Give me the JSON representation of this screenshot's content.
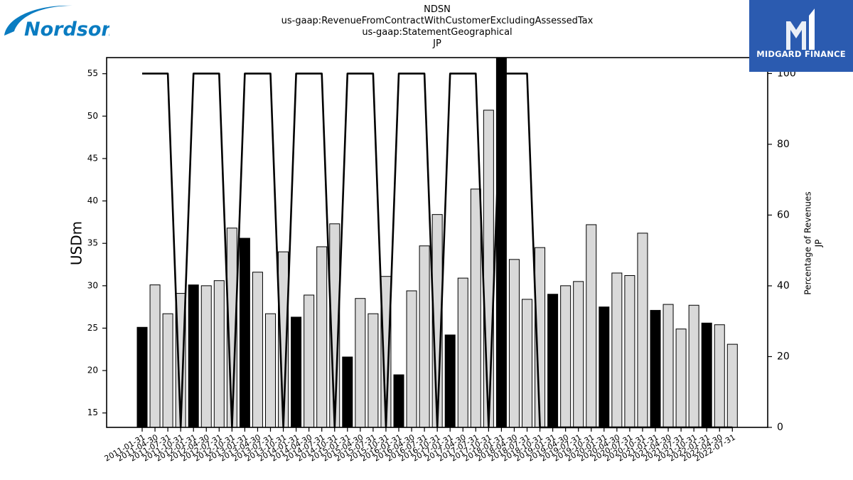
{
  "titles": {
    "line1": "NDSN",
    "line2": "us-gaap:RevenueFromContractWithCustomerExcludingAssessedTax",
    "line3": "us-gaap:StatementGeographical",
    "line4": "JP"
  },
  "logos": {
    "left": "Nordson",
    "right": "MIDGARD FINANCE"
  },
  "colors": {
    "bar_highlight": "#000000",
    "bar_normal": "#d9d9d9",
    "nordson_blue": "#0a7cc1",
    "midgard_blue": "#2b5bb0"
  },
  "chart_data": {
    "type": "bar",
    "ylabel": "USDm",
    "y2label_line1": "Percentage of Revenues",
    "y2label_line2": "JP",
    "ylim": [
      13.3,
      56.9
    ],
    "y2lim": [
      0,
      104.5
    ],
    "yticks": [
      15,
      20,
      25,
      30,
      35,
      40,
      45,
      50,
      55
    ],
    "y2ticks": [
      0,
      20,
      40,
      60,
      80,
      100
    ],
    "categories": [
      "2011-01-31",
      "2011-04-30",
      "2011-07-31",
      "2011-10-31",
      "2012-01-31",
      "2012-04-30",
      "2012-07-31",
      "2012-10-31",
      "2013-01-31",
      "2013-04-30",
      "2013-07-31",
      "2013-10-31",
      "2014-01-31",
      "2014-04-30",
      "2014-07-31",
      "2014-10-31",
      "2015-01-31",
      "2015-04-30",
      "2015-07-31",
      "2015-10-31",
      "2016-01-31",
      "2016-04-30",
      "2016-07-31",
      "2016-10-31",
      "2017-01-31",
      "2017-04-30",
      "2017-07-31",
      "2017-10-31",
      "2018-01-31",
      "2018-04-30",
      "2018-07-31",
      "2018-10-31",
      "2019-01-31",
      "2019-04-30",
      "2019-07-31",
      "2019-10-31",
      "2020-01-31",
      "2020-04-30",
      "2020-07-31",
      "2020-10-31",
      "2021-01-31",
      "2021-04-30",
      "2021-07-31",
      "2021-10-31",
      "2022-01-31",
      "2022-04-30",
      "2022-07-31"
    ],
    "series": [
      {
        "values": [
          25.1,
          30.1,
          26.7,
          29.1,
          30.1,
          30.0,
          30.6,
          36.8,
          35.6,
          31.6,
          26.7,
          34.0,
          26.3,
          28.9,
          34.6,
          37.3,
          21.6,
          28.5,
          26.7,
          31.1,
          19.5,
          29.4,
          34.7,
          38.4,
          24.2,
          30.9,
          41.4,
          50.7,
          57.2,
          33.1,
          28.4,
          34.5,
          29.0,
          30.0,
          30.5,
          37.2,
          27.5,
          31.5,
          31.2,
          36.2,
          27.1,
          27.8,
          24.9,
          27.7,
          25.6,
          25.4,
          23.1
        ],
        "highlight": [
          true,
          false,
          false,
          false,
          true,
          false,
          false,
          false,
          true,
          false,
          false,
          false,
          true,
          false,
          false,
          false,
          true,
          false,
          false,
          false,
          true,
          false,
          false,
          false,
          true,
          false,
          false,
          false,
          true,
          false,
          false,
          false,
          true,
          false,
          false,
          false,
          true,
          false,
          false,
          false,
          true,
          false,
          false,
          false,
          true,
          false,
          false
        ]
      },
      {
        "axis": "right",
        "type": "line",
        "values": [
          100,
          100,
          100,
          0,
          100,
          100,
          100,
          0,
          100,
          100,
          100,
          0,
          100,
          100,
          100,
          0,
          100,
          100,
          100,
          0,
          100,
          100,
          100,
          0,
          100,
          100,
          100,
          0,
          100,
          100,
          100,
          0,
          0,
          0,
          0,
          0,
          0,
          0,
          0,
          0,
          0,
          0,
          0,
          0,
          0,
          0,
          0
        ]
      }
    ]
  }
}
